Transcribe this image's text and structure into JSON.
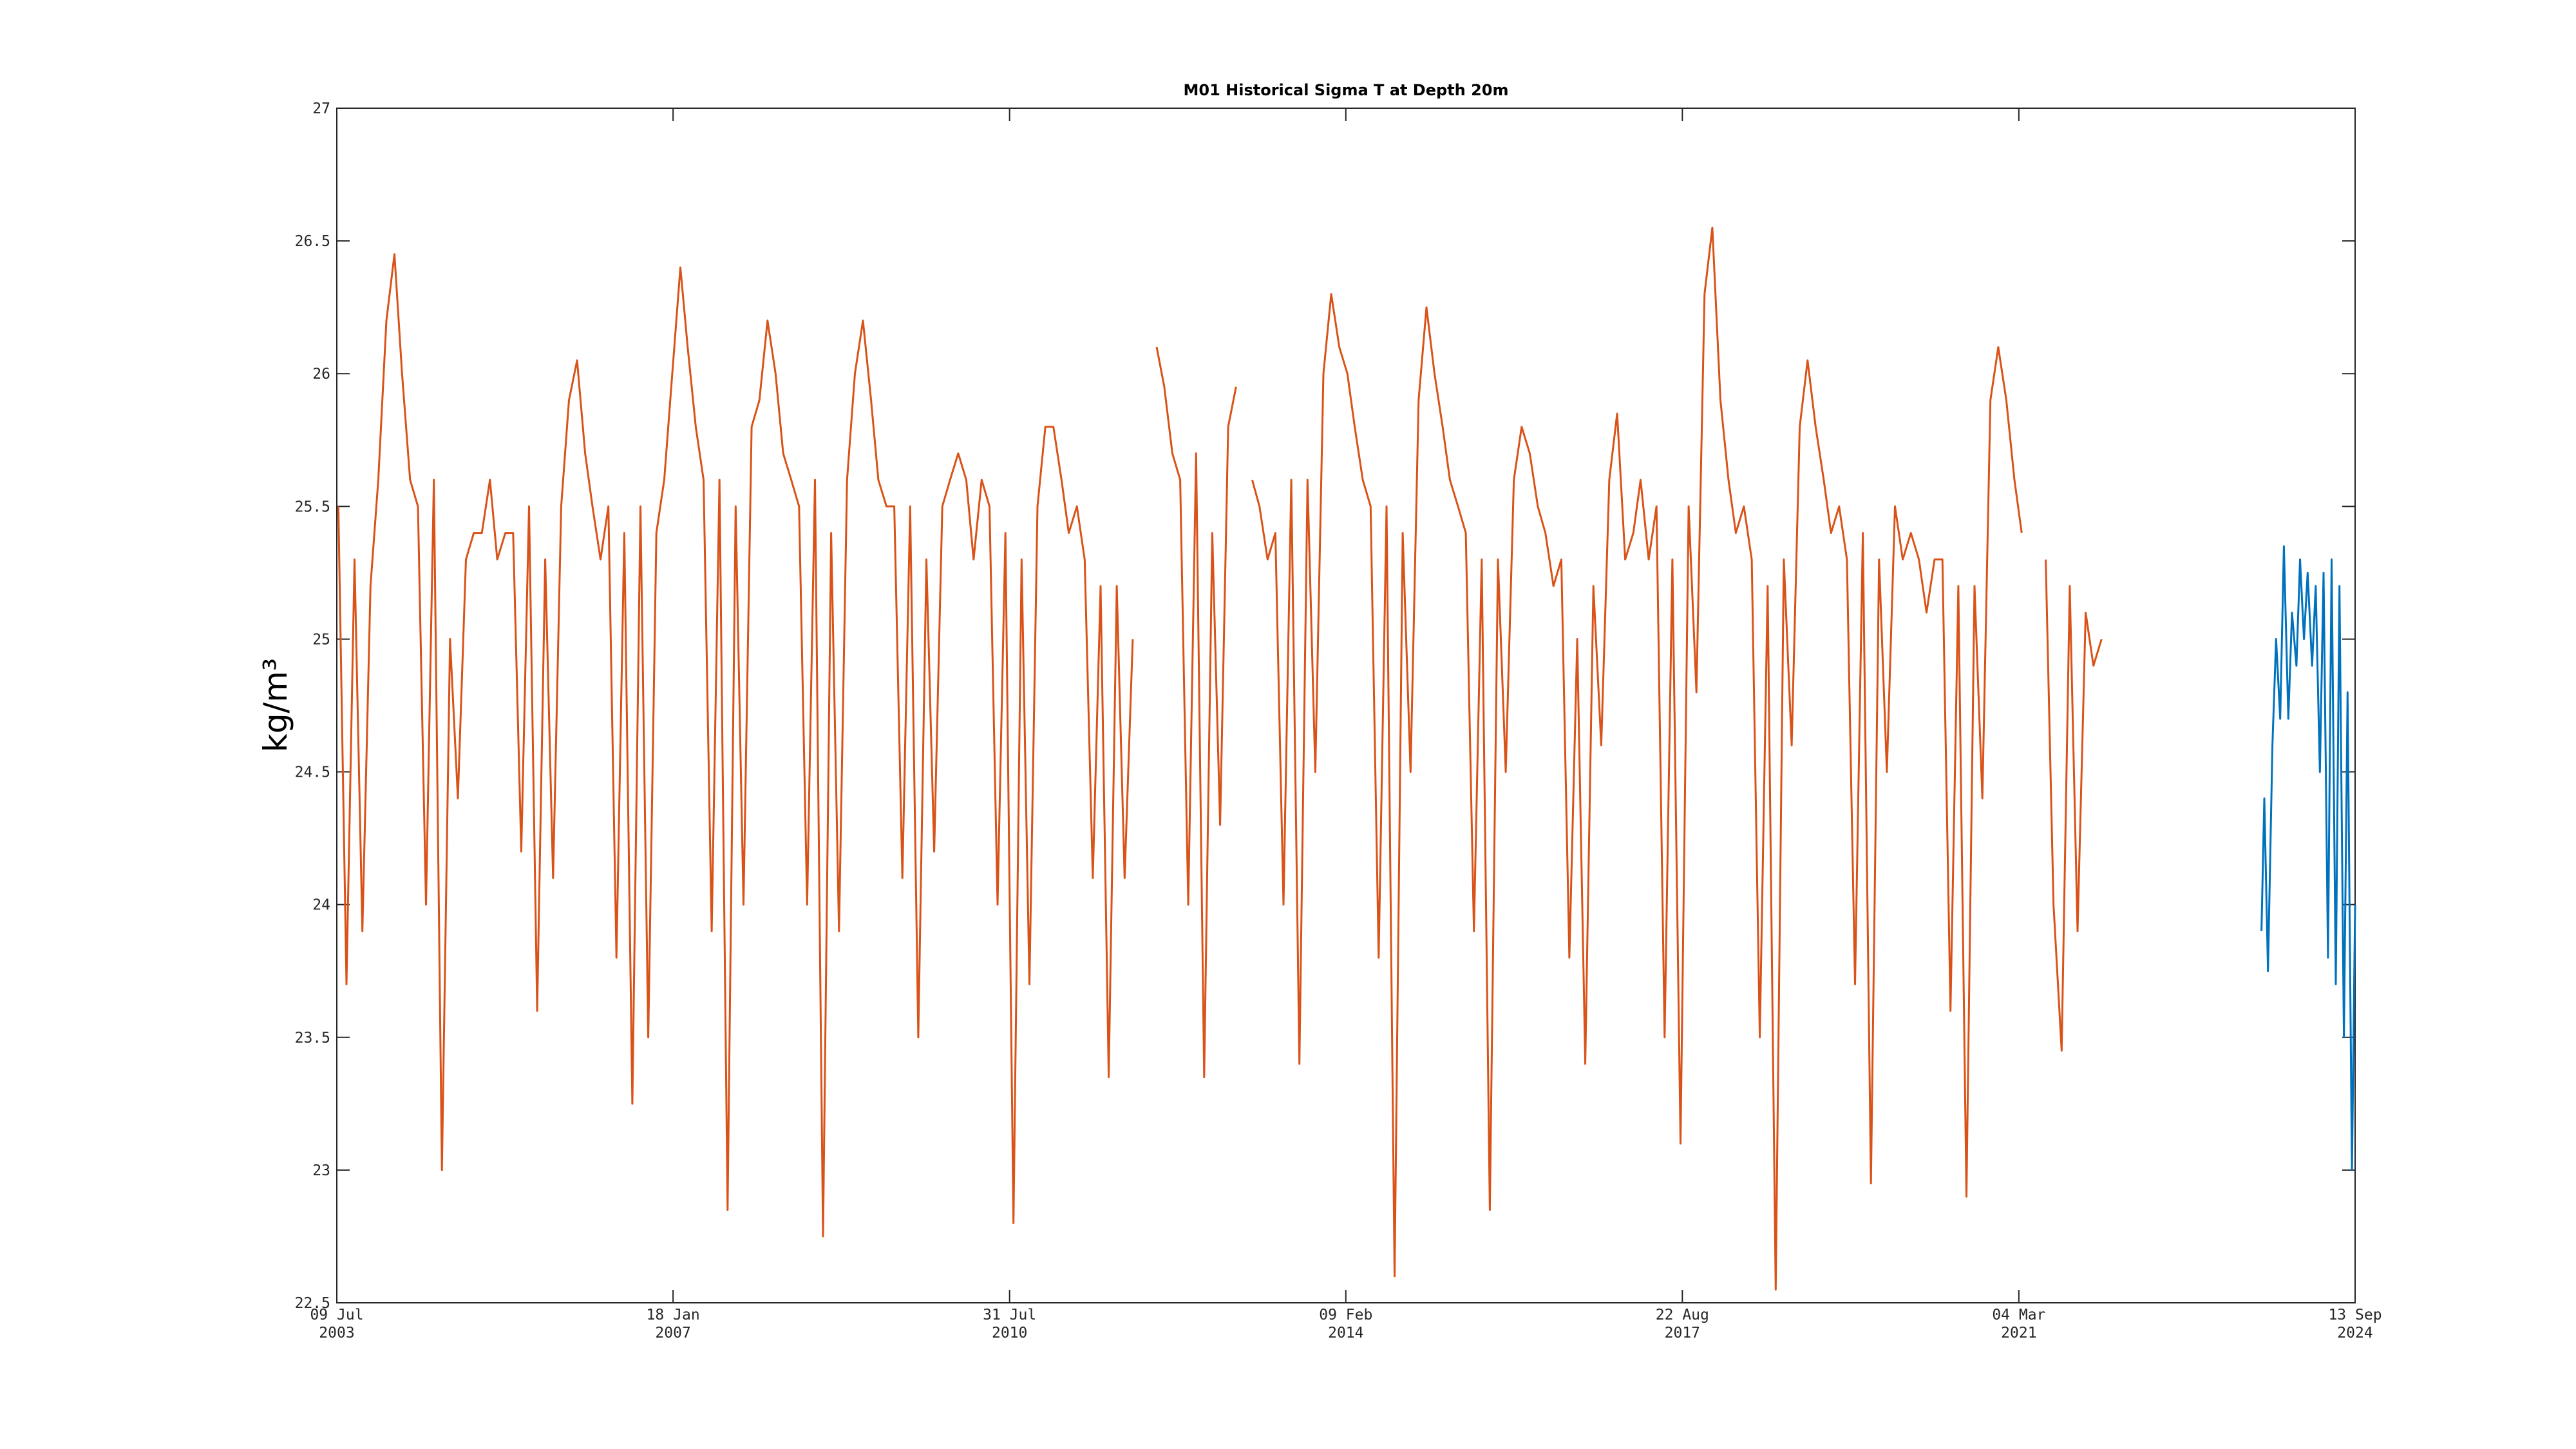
{
  "chart_data": {
    "type": "line",
    "title": "M01 Historical Sigma T at Depth 20m",
    "y_label": "kg/m³",
    "xlim": [
      "2003-07-09",
      "2024-09-13"
    ],
    "xticks": [
      {
        "value": "2003-07-09",
        "label": [
          "09 Jul",
          "2003"
        ]
      },
      {
        "value": "2007-01-18",
        "label": [
          "18 Jan",
          "2007"
        ]
      },
      {
        "value": "2010-07-31",
        "label": [
          "31 Jul",
          "2010"
        ]
      },
      {
        "value": "2014-02-09",
        "label": [
          "09 Feb",
          "2014"
        ]
      },
      {
        "value": "2017-08-22",
        "label": [
          "22 Aug",
          "2017"
        ]
      },
      {
        "value": "2021-03-04",
        "label": [
          "04 Mar",
          "2021"
        ]
      },
      {
        "value": "2024-09-13",
        "label": [
          "13 Sep",
          "2024"
        ]
      }
    ],
    "ylim": [
      22.5,
      27
    ],
    "yticks": [
      22.5,
      23,
      23.5,
      24,
      24.5,
      25,
      25.5,
      26,
      26.5,
      27
    ],
    "series": [
      {
        "color": "#d95319",
        "x": [
          "2003-07-15",
          "2003-08-15",
          "2003-09-15",
          "2003-10-15",
          "2003-11-15",
          "2003-12-15",
          "2004-01-15",
          "2004-02-15",
          "2004-03-15",
          "2004-04-15",
          "2004-05-15",
          "2004-06-15",
          "2004-07-15",
          "2004-08-15",
          "2004-09-15",
          "2004-10-15",
          "2004-11-15",
          "2004-12-15",
          "2005-01-15",
          "2005-02-15",
          "2005-03-15",
          "2005-04-15",
          "2005-05-15",
          "2005-06-15",
          "2005-07-15",
          "2005-08-15",
          "2005-09-15",
          "2005-10-15",
          "2005-11-15",
          "2005-12-15",
          "2006-01-15",
          "2006-02-15",
          "2006-03-15",
          "2006-04-15",
          "2006-05-15",
          "2006-06-15",
          "2006-07-15",
          "2006-08-15",
          "2006-09-15",
          "2006-10-15",
          "2006-11-15",
          "2006-12-15",
          "2007-01-15",
          "2007-02-15",
          "2007-03-15",
          "2007-04-15",
          "2007-05-15",
          "2007-06-15",
          "2007-07-15",
          "2007-08-15",
          "2007-09-15",
          "2007-10-15",
          "2007-11-15",
          "2007-12-15",
          "2008-01-15",
          "2008-02-15",
          "2008-03-15",
          "2008-04-15",
          "2008-05-15",
          "2008-06-15",
          "2008-07-15",
          "2008-08-15",
          "2008-09-15",
          "2008-10-15",
          "2008-11-15",
          "2008-12-15",
          "2009-01-15",
          "2009-02-15",
          "2009-03-15",
          "2009-04-15",
          "2009-05-15",
          "2009-06-15",
          "2009-07-15",
          "2009-08-15",
          "2009-09-15",
          "2009-10-15",
          "2009-11-15",
          "2009-12-15",
          "2010-01-15",
          "2010-02-15",
          "2010-03-15",
          "2010-04-15",
          "2010-05-15",
          "2010-06-15",
          "2010-07-15",
          "2010-08-15",
          "2010-09-15",
          "2010-10-15",
          "2010-11-15",
          "2010-12-15",
          "2011-01-15",
          "2011-02-15",
          "2011-03-15",
          "2011-04-15",
          "2011-05-15",
          "2011-06-15",
          "2011-07-15",
          "2011-08-15",
          "2011-09-15",
          "2011-10-15",
          "2011-11-15",
          "2011-12-15",
          "2012-01-15",
          "2012-02-15",
          "2012-03-15",
          "2012-04-15",
          "2012-05-15",
          "2012-06-15",
          "2012-07-15",
          "2012-08-15",
          "2012-09-15",
          "2012-10-15",
          "2012-11-15",
          "2012-12-15",
          "2013-01-15",
          "2013-02-15",
          "2013-03-15",
          "2013-04-15",
          "2013-05-15",
          "2013-06-15",
          "2013-07-15",
          "2013-08-15",
          "2013-09-15",
          "2013-10-15",
          "2013-11-15",
          "2013-12-15",
          "2014-01-15",
          "2014-02-15",
          "2014-03-15",
          "2014-04-15",
          "2014-05-15",
          "2014-06-15",
          "2014-07-15",
          "2014-08-15",
          "2014-09-15",
          "2014-10-15",
          "2014-11-15",
          "2014-12-15",
          "2015-01-15",
          "2015-02-15",
          "2015-03-15",
          "2015-04-15",
          "2015-05-15",
          "2015-06-15",
          "2015-07-15",
          "2015-08-15",
          "2015-09-15",
          "2015-10-15",
          "2015-11-15",
          "2015-12-15",
          "2016-01-15",
          "2016-02-15",
          "2016-03-15",
          "2016-04-15",
          "2016-05-15",
          "2016-06-15",
          "2016-07-15",
          "2016-08-15",
          "2016-09-15",
          "2016-10-15",
          "2016-11-15",
          "2016-12-15",
          "2017-01-15",
          "2017-02-15",
          "2017-03-15",
          "2017-04-15",
          "2017-05-15",
          "2017-06-15",
          "2017-07-15",
          "2017-08-15",
          "2017-09-15",
          "2017-10-15",
          "2017-11-15",
          "2017-12-15",
          "2018-01-15",
          "2018-02-15",
          "2018-03-15",
          "2018-04-15",
          "2018-05-15",
          "2018-06-15",
          "2018-07-15",
          "2018-08-15",
          "2018-09-15",
          "2018-10-15",
          "2018-11-15",
          "2018-12-15",
          "2019-01-15",
          "2019-02-15",
          "2019-03-15",
          "2019-04-15",
          "2019-05-15",
          "2019-06-15",
          "2019-07-15",
          "2019-08-15",
          "2019-09-15",
          "2019-10-15",
          "2019-11-15",
          "2019-12-15",
          "2020-01-15",
          "2020-02-15",
          "2020-03-15",
          "2020-04-15",
          "2020-05-15",
          "2020-06-15",
          "2020-07-15",
          "2020-08-15",
          "2020-09-15",
          "2020-10-15",
          "2020-11-15",
          "2020-12-15",
          "2021-01-15",
          "2021-02-15",
          "2021-03-15",
          "2021-04-15",
          "2021-05-15",
          "2021-06-15",
          "2021-07-15",
          "2021-08-15",
          "2021-09-15",
          "2021-10-15",
          "2021-11-15",
          "2021-12-15",
          "2022-01-15"
        ],
        "values": [
          25.5,
          23.7,
          25.3,
          23.9,
          25.2,
          25.6,
          26.2,
          26.45,
          26.0,
          25.6,
          25.5,
          24.0,
          25.6,
          23.0,
          25.0,
          24.4,
          25.3,
          25.4,
          25.4,
          25.6,
          25.3,
          25.4,
          25.4,
          24.2,
          25.5,
          23.6,
          25.3,
          24.1,
          25.5,
          25.9,
          26.05,
          25.7,
          25.5,
          25.3,
          25.5,
          23.8,
          25.4,
          23.25,
          25.5,
          23.5,
          25.4,
          25.6,
          26.0,
          26.4,
          26.1,
          25.8,
          25.6,
          23.9,
          25.6,
          22.85,
          25.5,
          24.0,
          25.8,
          25.9,
          26.2,
          26.0,
          25.7,
          25.6,
          25.5,
          24.0,
          25.6,
          22.75,
          25.4,
          23.9,
          25.6,
          26.0,
          26.2,
          25.9,
          25.6,
          25.5,
          25.5,
          24.1,
          25.5,
          23.5,
          25.3,
          24.2,
          25.5,
          25.6,
          25.7,
          25.6,
          25.3,
          25.6,
          25.5,
          24.0,
          25.4,
          22.8,
          25.3,
          23.7,
          25.5,
          25.8,
          25.8,
          25.6,
          25.4,
          25.5,
          25.3,
          24.1,
          25.2,
          23.35,
          25.2,
          24.1,
          25.0,
          null,
          null,
          26.1,
          25.95,
          25.7,
          25.6,
          24.0,
          25.7,
          23.35,
          25.4,
          24.3,
          25.8,
          25.95,
          null,
          25.6,
          25.5,
          25.3,
          25.4,
          24.0,
          25.6,
          23.4,
          25.6,
          24.5,
          26.0,
          26.3,
          26.1,
          26.0,
          25.8,
          25.6,
          25.5,
          23.8,
          25.5,
          22.6,
          25.4,
          24.5,
          25.9,
          26.25,
          26.0,
          25.8,
          25.6,
          25.5,
          25.4,
          23.9,
          25.3,
          22.85,
          25.3,
          24.5,
          25.6,
          25.8,
          25.7,
          25.5,
          25.4,
          25.2,
          25.3,
          23.8,
          25.0,
          23.4,
          25.2,
          24.6,
          25.6,
          25.85,
          25.3,
          25.4,
          25.6,
          25.3,
          25.5,
          23.5,
          25.3,
          23.1,
          25.5,
          24.8,
          26.3,
          26.55,
          25.9,
          25.6,
          25.4,
          25.5,
          25.3,
          23.5,
          25.2,
          22.55,
          25.3,
          24.6,
          25.8,
          26.05,
          25.8,
          25.6,
          25.4,
          25.5,
          25.3,
          23.7,
          25.4,
          22.95,
          25.3,
          24.5,
          25.5,
          25.3,
          25.4,
          25.3,
          25.1,
          25.3,
          25.3,
          23.6,
          25.2,
          22.9,
          25.2,
          24.4,
          25.9,
          26.1,
          25.9,
          25.6,
          25.4,
          null,
          null,
          25.3,
          24.0,
          23.45,
          25.2,
          23.9,
          25.1,
          24.9,
          25.0
        ]
      },
      {
        "color": "#0072bd",
        "x": [
          "2023-09-20",
          "2023-10-01",
          "2023-10-15",
          "2023-11-01",
          "2023-11-15",
          "2023-12-01",
          "2023-12-15",
          "2024-01-01",
          "2024-01-15",
          "2024-02-01",
          "2024-02-15",
          "2024-03-01",
          "2024-03-15",
          "2024-04-01",
          "2024-04-15",
          "2024-05-01",
          "2024-05-15",
          "2024-06-01",
          "2024-06-15",
          "2024-07-01",
          "2024-07-15",
          "2024-08-01",
          "2024-08-15",
          "2024-09-01",
          "2024-09-13"
        ],
        "values": [
          23.9,
          24.4,
          23.75,
          24.6,
          25.0,
          24.7,
          25.35,
          24.7,
          25.1,
          24.9,
          25.3,
          25.0,
          25.25,
          24.9,
          25.2,
          24.5,
          25.25,
          23.8,
          25.3,
          23.7,
          25.2,
          23.5,
          24.8,
          23.0,
          24.0
        ]
      }
    ]
  }
}
